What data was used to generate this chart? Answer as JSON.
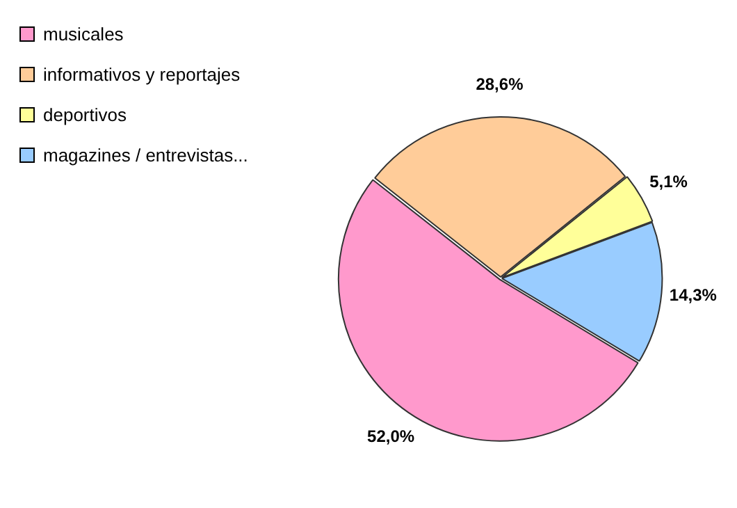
{
  "chart_data": {
    "type": "pie",
    "categories": [
      "musicales",
      "informativos y reportajes",
      "deportivos",
      "magazines / entrevistas..."
    ],
    "values": [
      52.0,
      28.6,
      5.1,
      14.3
    ],
    "value_labels": [
      "52,0%",
      "28,6%",
      "5,1%",
      "14,3%"
    ],
    "colors": [
      "#ff99cc",
      "#ffcc99",
      "#ffff99",
      "#99ccff"
    ],
    "legend": "top left"
  }
}
